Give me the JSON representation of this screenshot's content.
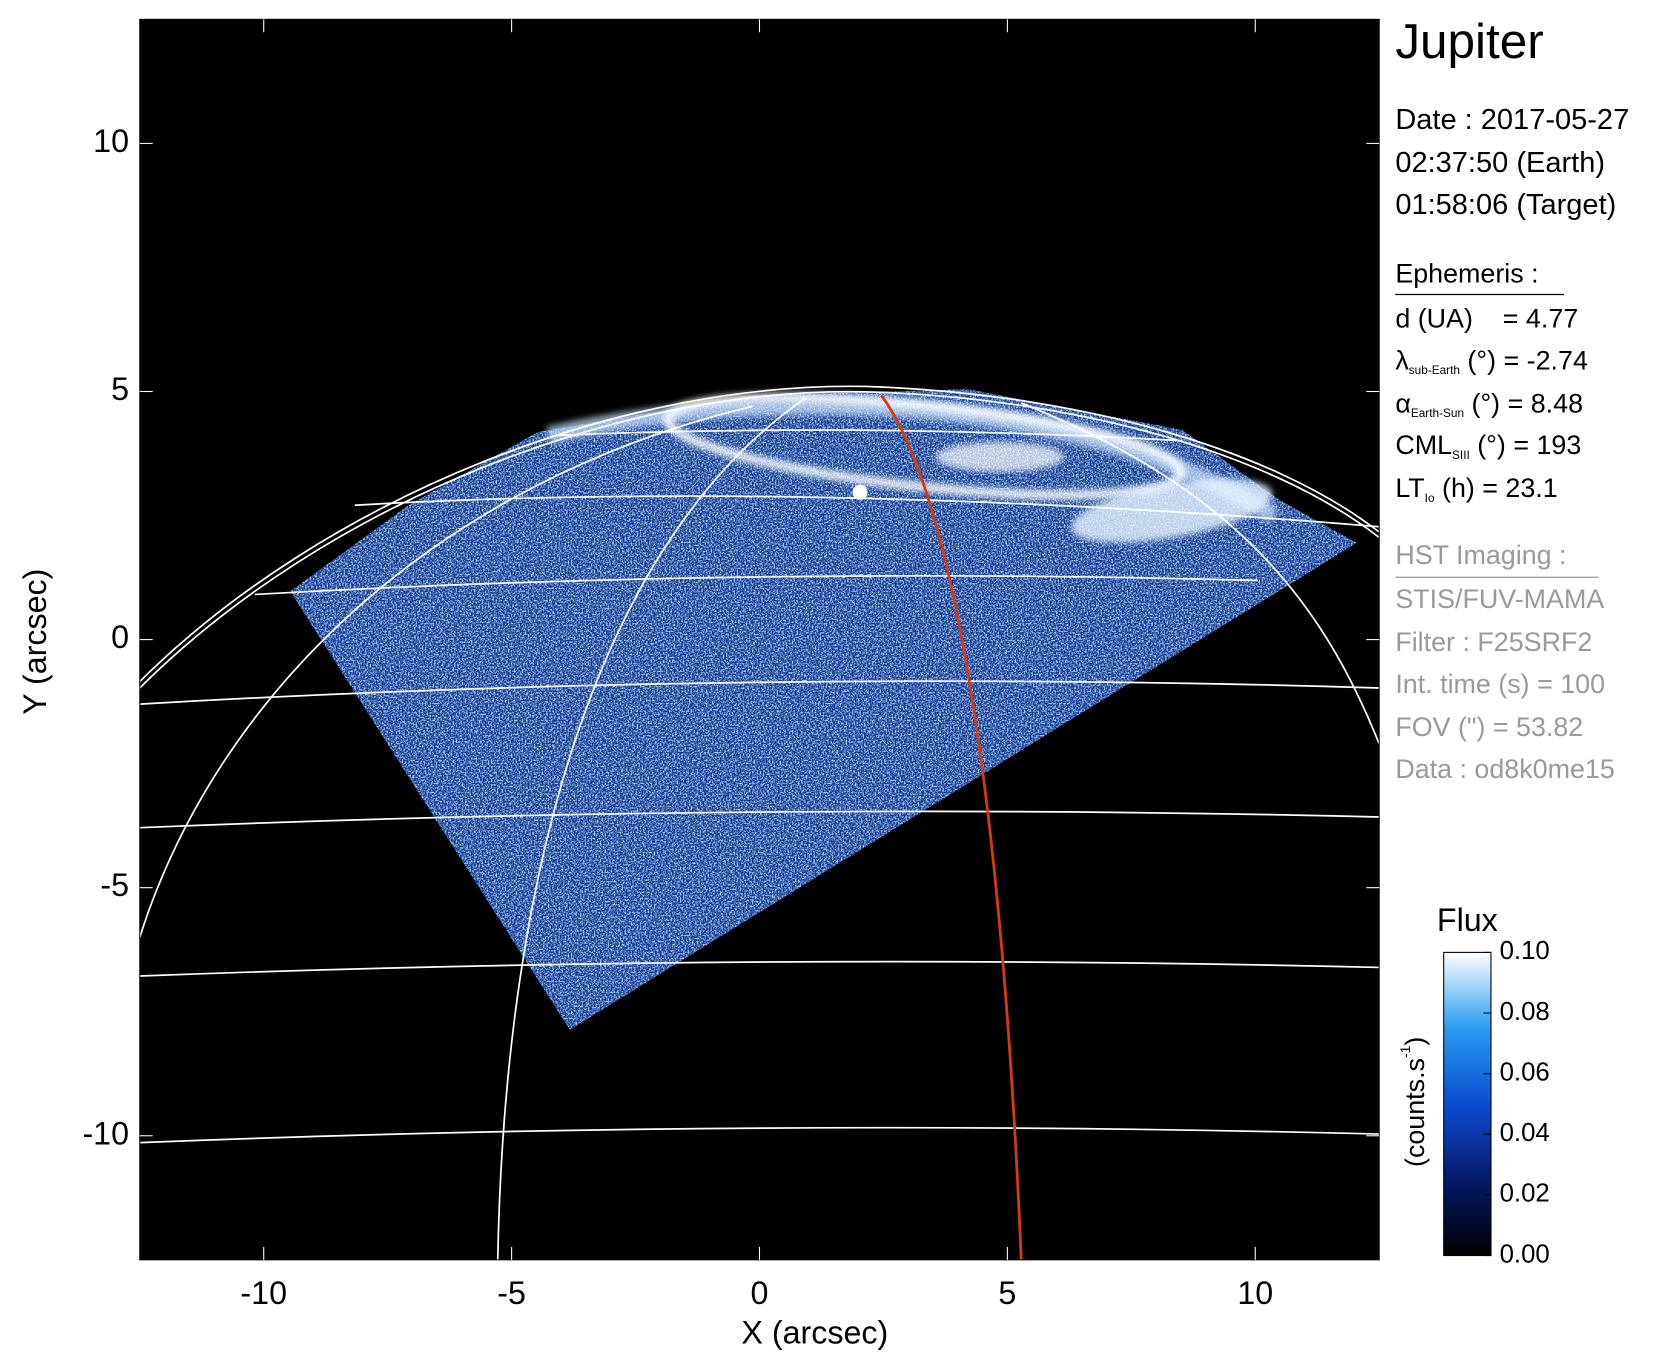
{
  "chart_data": {
    "type": "image",
    "title": "Jupiter",
    "xlabel": "X (arcsec)",
    "ylabel": "Y (arcsec)",
    "xlim": [
      -12.5,
      12.5
    ],
    "ylim": [
      -12.5,
      12.5
    ],
    "xticks": [
      -10,
      -5,
      0,
      5,
      10
    ],
    "yticks": [
      -10,
      -5,
      0,
      5,
      10
    ],
    "info": [
      "Date : 2017-05-27",
      "02:37:50 (Earth)",
      "01:58:06 (Target)"
    ],
    "ephemeris": {
      "heading": "Ephemeris :",
      "rows": [
        {
          "symbol": "d (UA)",
          "sub": "",
          "rest": "    = 4.77"
        },
        {
          "symbol": "λ",
          "sub": "sub-Earth",
          "rest": " (°) = -2.74"
        },
        {
          "symbol": "α",
          "sub": "Earth-Sun",
          "rest": " (°) = 8.48"
        },
        {
          "symbol": "CML",
          "sub": "SIII",
          "rest": " (°) = 193"
        },
        {
          "symbol": "LT",
          "sub": "Io",
          "rest": " (h) = 23.1"
        }
      ]
    },
    "imaging": {
      "heading": "HST Imaging :",
      "lines": [
        "STIS/FUV-MAMA",
        "Filter : F25SRF2",
        "Int. time (s) = 100",
        "FOV (\") = 53.82",
        "Data : od8k0me15"
      ]
    },
    "colorbar": {
      "title": "Flux",
      "label": "(counts.s",
      "label_sup": "-1",
      "label_end": ")",
      "clim": [
        0,
        0.1
      ],
      "ticks": [
        {
          "value": 0,
          "label": "0.00"
        },
        0.02,
        0.04,
        0.06,
        0.08,
        {
          "value": 0.1,
          "label": "0.10"
        }
      ],
      "colors": [
        "#000000",
        "#061a6a",
        "#0a4bd0",
        "#2a9cf0",
        "#ffffff"
      ]
    }
  }
}
